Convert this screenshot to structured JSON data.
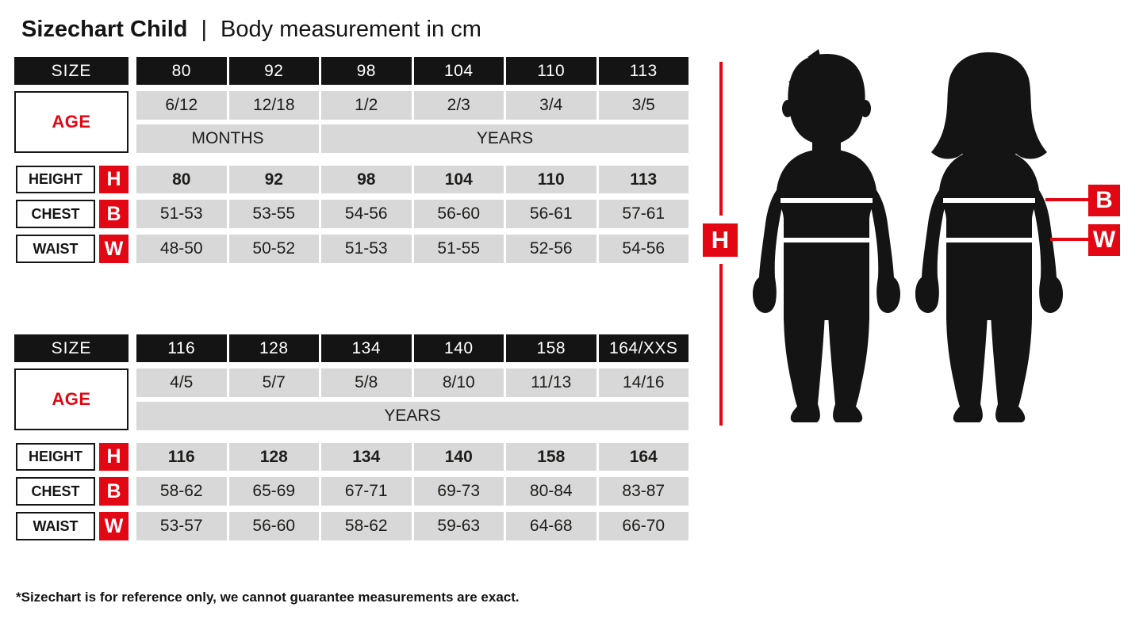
{
  "title": {
    "main": "Sizechart Child",
    "separator": "|",
    "subtitle": "Body measurement in cm"
  },
  "labels": {
    "size": "SIZE",
    "age": "AGE",
    "height": "HEIGHT",
    "chest": "CHEST",
    "waist": "WAIST",
    "height_letter": "H",
    "chest_letter": "B",
    "waist_letter": "W"
  },
  "figure": {
    "height_badge": "H",
    "chest_badge": "B",
    "waist_badge": "W"
  },
  "chart_data": {
    "type": "table",
    "title": "Sizechart Child | Body measurement in cm",
    "tables": [
      {
        "name": "small-sizes",
        "columns": [
          "80",
          "92",
          "98",
          "104",
          "110",
          "113"
        ],
        "age": [
          "6/12",
          "12/18",
          "1/2",
          "2/3",
          "3/4",
          "3/5"
        ],
        "age_units": [
          {
            "label": "MONTHS",
            "span": 2
          },
          {
            "label": "YEARS",
            "span": 4
          }
        ],
        "height": [
          "80",
          "92",
          "98",
          "104",
          "110",
          "113"
        ],
        "chest": [
          "51-53",
          "53-55",
          "54-56",
          "56-60",
          "56-61",
          "57-61"
        ],
        "waist": [
          "48-50",
          "50-52",
          "51-53",
          "51-55",
          "52-56",
          "54-56"
        ]
      },
      {
        "name": "large-sizes",
        "columns": [
          "116",
          "128",
          "134",
          "140",
          "158",
          "164/XXS"
        ],
        "age": [
          "4/5",
          "5/7",
          "5/8",
          "8/10",
          "11/13",
          "14/16"
        ],
        "age_units": [
          {
            "label": "YEARS",
            "span": 6
          }
        ],
        "height": [
          "116",
          "128",
          "134",
          "140",
          "158",
          "164"
        ],
        "chest": [
          "58-62",
          "65-69",
          "67-71",
          "69-73",
          "80-84",
          "83-87"
        ],
        "waist": [
          "53-57",
          "56-60",
          "58-62",
          "59-63",
          "64-68",
          "66-70"
        ]
      }
    ]
  },
  "footnote": "*Sizechart is for reference only, we cannot guarantee measurements are exact.",
  "colors": {
    "accent_red": "#e30613",
    "ink_black": "#141414",
    "cell_gray": "#d8d8d8"
  }
}
